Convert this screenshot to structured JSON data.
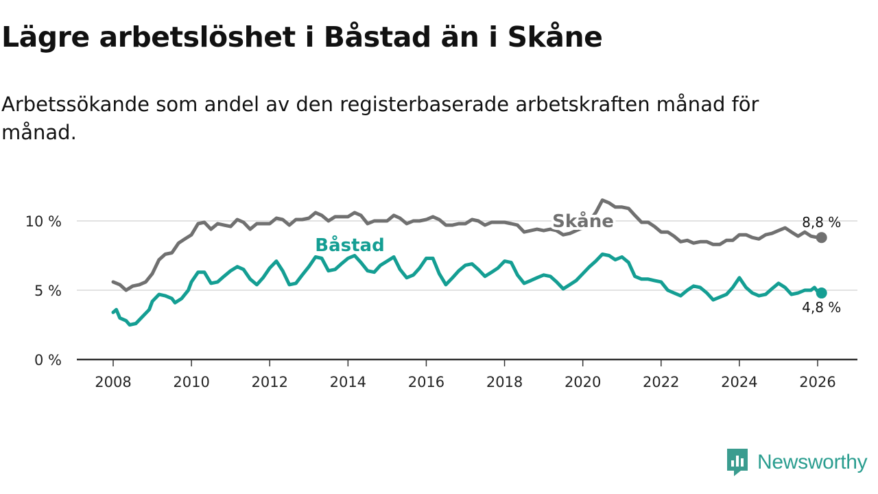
{
  "title": "Lägre arbetslöshet i Båstad än i Skåne",
  "subtitle": "Arbetssökande som andel av den registerbaserade arbetskraften månad för månad.",
  "brand": {
    "name": "Newsworthy",
    "icon": "newsworthy-logo-icon",
    "color": "#3a9c8f"
  },
  "chart_data": {
    "type": "line",
    "title": "Lägre arbetslöshet i Båstad än i Skåne",
    "xlabel": "",
    "ylabel": "",
    "xlim": [
      2007,
      2027
    ],
    "ylim": [
      0,
      12
    ],
    "x_ticks": [
      2008,
      2010,
      2012,
      2014,
      2016,
      2018,
      2020,
      2022,
      2024,
      2026
    ],
    "y_ticks": [
      0,
      5,
      10
    ],
    "y_tick_labels": [
      "0 %",
      "5 %",
      "10 %"
    ],
    "grid": "horizontal",
    "series": [
      {
        "name": "Skåne",
        "color": "#707070",
        "end_label": "8,8 %",
        "points": [
          [
            2008.0,
            5.6
          ],
          [
            2008.17,
            5.4
          ],
          [
            2008.33,
            5.0
          ],
          [
            2008.5,
            5.3
          ],
          [
            2008.67,
            5.4
          ],
          [
            2008.83,
            5.6
          ],
          [
            2009.0,
            6.2
          ],
          [
            2009.17,
            7.2
          ],
          [
            2009.33,
            7.6
          ],
          [
            2009.5,
            7.7
          ],
          [
            2009.67,
            8.4
          ],
          [
            2009.83,
            8.7
          ],
          [
            2010.0,
            9.0
          ],
          [
            2010.17,
            9.8
          ],
          [
            2010.33,
            9.9
          ],
          [
            2010.5,
            9.4
          ],
          [
            2010.67,
            9.8
          ],
          [
            2010.83,
            9.7
          ],
          [
            2011.0,
            9.6
          ],
          [
            2011.17,
            10.1
          ],
          [
            2011.33,
            9.9
          ],
          [
            2011.5,
            9.4
          ],
          [
            2011.67,
            9.8
          ],
          [
            2011.83,
            9.8
          ],
          [
            2012.0,
            9.8
          ],
          [
            2012.17,
            10.2
          ],
          [
            2012.33,
            10.1
          ],
          [
            2012.5,
            9.7
          ],
          [
            2012.67,
            10.1
          ],
          [
            2012.83,
            10.1
          ],
          [
            2013.0,
            10.2
          ],
          [
            2013.17,
            10.6
          ],
          [
            2013.33,
            10.4
          ],
          [
            2013.5,
            10.0
          ],
          [
            2013.67,
            10.3
          ],
          [
            2013.83,
            10.3
          ],
          [
            2014.0,
            10.3
          ],
          [
            2014.17,
            10.6
          ],
          [
            2014.33,
            10.4
          ],
          [
            2014.5,
            9.8
          ],
          [
            2014.67,
            10.0
          ],
          [
            2014.83,
            10.0
          ],
          [
            2015.0,
            10.0
          ],
          [
            2015.17,
            10.4
          ],
          [
            2015.33,
            10.2
          ],
          [
            2015.5,
            9.8
          ],
          [
            2015.67,
            10.0
          ],
          [
            2015.83,
            10.0
          ],
          [
            2016.0,
            10.1
          ],
          [
            2016.17,
            10.3
          ],
          [
            2016.33,
            10.1
          ],
          [
            2016.5,
            9.7
          ],
          [
            2016.67,
            9.7
          ],
          [
            2016.83,
            9.8
          ],
          [
            2017.0,
            9.8
          ],
          [
            2017.17,
            10.1
          ],
          [
            2017.33,
            10.0
          ],
          [
            2017.5,
            9.7
          ],
          [
            2017.67,
            9.9
          ],
          [
            2017.83,
            9.9
          ],
          [
            2018.0,
            9.9
          ],
          [
            2018.17,
            9.8
          ],
          [
            2018.33,
            9.7
          ],
          [
            2018.5,
            9.2
          ],
          [
            2018.67,
            9.3
          ],
          [
            2018.83,
            9.4
          ],
          [
            2019.0,
            9.3
          ],
          [
            2019.17,
            9.4
          ],
          [
            2019.33,
            9.3
          ],
          [
            2019.5,
            9.0
          ],
          [
            2019.67,
            9.1
          ],
          [
            2019.83,
            9.3
          ],
          [
            2020.0,
            9.5
          ],
          [
            2020.17,
            10.0
          ],
          [
            2020.33,
            10.6
          ],
          [
            2020.5,
            11.5
          ],
          [
            2020.67,
            11.3
          ],
          [
            2020.83,
            11.0
          ],
          [
            2021.0,
            11.0
          ],
          [
            2021.17,
            10.9
          ],
          [
            2021.33,
            10.4
          ],
          [
            2021.5,
            9.9
          ],
          [
            2021.67,
            9.9
          ],
          [
            2021.83,
            9.6
          ],
          [
            2022.0,
            9.2
          ],
          [
            2022.17,
            9.2
          ],
          [
            2022.33,
            8.9
          ],
          [
            2022.5,
            8.5
          ],
          [
            2022.67,
            8.6
          ],
          [
            2022.83,
            8.4
          ],
          [
            2023.0,
            8.5
          ],
          [
            2023.17,
            8.5
          ],
          [
            2023.33,
            8.3
          ],
          [
            2023.5,
            8.3
          ],
          [
            2023.67,
            8.6
          ],
          [
            2023.83,
            8.6
          ],
          [
            2024.0,
            9.0
          ],
          [
            2024.17,
            9.0
          ],
          [
            2024.33,
            8.8
          ],
          [
            2024.5,
            8.7
          ],
          [
            2024.67,
            9.0
          ],
          [
            2024.83,
            9.1
          ],
          [
            2025.0,
            9.3
          ],
          [
            2025.17,
            9.5
          ],
          [
            2025.33,
            9.2
          ],
          [
            2025.5,
            8.9
          ],
          [
            2025.67,
            9.2
          ],
          [
            2025.83,
            8.9
          ],
          [
            2026.0,
            8.8
          ],
          [
            2026.1,
            8.8
          ]
        ]
      },
      {
        "name": "Båstad",
        "color": "#149e93",
        "end_label": "4,8 %",
        "points": [
          [
            2008.0,
            3.4
          ],
          [
            2008.08,
            3.6
          ],
          [
            2008.17,
            3.0
          ],
          [
            2008.33,
            2.8
          ],
          [
            2008.42,
            2.5
          ],
          [
            2008.58,
            2.6
          ],
          [
            2008.75,
            3.1
          ],
          [
            2008.92,
            3.6
          ],
          [
            2009.0,
            4.2
          ],
          [
            2009.17,
            4.7
          ],
          [
            2009.33,
            4.6
          ],
          [
            2009.5,
            4.4
          ],
          [
            2009.58,
            4.1
          ],
          [
            2009.75,
            4.4
          ],
          [
            2009.92,
            5.0
          ],
          [
            2010.0,
            5.6
          ],
          [
            2010.17,
            6.3
          ],
          [
            2010.33,
            6.3
          ],
          [
            2010.5,
            5.5
          ],
          [
            2010.67,
            5.6
          ],
          [
            2010.83,
            6.0
          ],
          [
            2011.0,
            6.4
          ],
          [
            2011.17,
            6.7
          ],
          [
            2011.33,
            6.5
          ],
          [
            2011.5,
            5.8
          ],
          [
            2011.67,
            5.4
          ],
          [
            2011.83,
            5.9
          ],
          [
            2012.0,
            6.6
          ],
          [
            2012.17,
            7.1
          ],
          [
            2012.33,
            6.4
          ],
          [
            2012.5,
            5.4
          ],
          [
            2012.67,
            5.5
          ],
          [
            2012.83,
            6.1
          ],
          [
            2013.0,
            6.7
          ],
          [
            2013.17,
            7.4
          ],
          [
            2013.33,
            7.3
          ],
          [
            2013.5,
            6.4
          ],
          [
            2013.67,
            6.5
          ],
          [
            2013.83,
            6.9
          ],
          [
            2014.0,
            7.3
          ],
          [
            2014.17,
            7.5
          ],
          [
            2014.33,
            7.0
          ],
          [
            2014.5,
            6.4
          ],
          [
            2014.67,
            6.3
          ],
          [
            2014.83,
            6.8
          ],
          [
            2015.0,
            7.1
          ],
          [
            2015.17,
            7.4
          ],
          [
            2015.33,
            6.5
          ],
          [
            2015.5,
            5.9
          ],
          [
            2015.67,
            6.1
          ],
          [
            2015.83,
            6.6
          ],
          [
            2016.0,
            7.3
          ],
          [
            2016.17,
            7.3
          ],
          [
            2016.33,
            6.2
          ],
          [
            2016.5,
            5.4
          ],
          [
            2016.67,
            5.9
          ],
          [
            2016.83,
            6.4
          ],
          [
            2017.0,
            6.8
          ],
          [
            2017.17,
            6.9
          ],
          [
            2017.33,
            6.5
          ],
          [
            2017.5,
            6.0
          ],
          [
            2017.67,
            6.3
          ],
          [
            2017.83,
            6.6
          ],
          [
            2018.0,
            7.1
          ],
          [
            2018.17,
            7.0
          ],
          [
            2018.33,
            6.1
          ],
          [
            2018.5,
            5.5
          ],
          [
            2018.67,
            5.7
          ],
          [
            2018.83,
            5.9
          ],
          [
            2019.0,
            6.1
          ],
          [
            2019.17,
            6.0
          ],
          [
            2019.33,
            5.6
          ],
          [
            2019.5,
            5.1
          ],
          [
            2019.67,
            5.4
          ],
          [
            2019.83,
            5.7
          ],
          [
            2020.0,
            6.2
          ],
          [
            2020.17,
            6.7
          ],
          [
            2020.33,
            7.1
          ],
          [
            2020.5,
            7.6
          ],
          [
            2020.67,
            7.5
          ],
          [
            2020.83,
            7.2
          ],
          [
            2021.0,
            7.4
          ],
          [
            2021.17,
            7.0
          ],
          [
            2021.33,
            6.0
          ],
          [
            2021.5,
            5.8
          ],
          [
            2021.67,
            5.8
          ],
          [
            2021.83,
            5.7
          ],
          [
            2022.0,
            5.6
          ],
          [
            2022.17,
            5.0
          ],
          [
            2022.33,
            4.8
          ],
          [
            2022.5,
            4.6
          ],
          [
            2022.67,
            5.0
          ],
          [
            2022.83,
            5.3
          ],
          [
            2023.0,
            5.2
          ],
          [
            2023.17,
            4.8
          ],
          [
            2023.33,
            4.3
          ],
          [
            2023.5,
            4.5
          ],
          [
            2023.67,
            4.7
          ],
          [
            2023.83,
            5.2
          ],
          [
            2024.0,
            5.9
          ],
          [
            2024.17,
            5.2
          ],
          [
            2024.33,
            4.8
          ],
          [
            2024.5,
            4.6
          ],
          [
            2024.67,
            4.7
          ],
          [
            2024.83,
            5.1
          ],
          [
            2025.0,
            5.5
          ],
          [
            2025.17,
            5.2
          ],
          [
            2025.33,
            4.7
          ],
          [
            2025.5,
            4.8
          ],
          [
            2025.67,
            5.0
          ],
          [
            2025.83,
            5.0
          ],
          [
            2025.92,
            5.2
          ],
          [
            2026.0,
            4.9
          ],
          [
            2026.1,
            4.8
          ]
        ]
      }
    ]
  }
}
